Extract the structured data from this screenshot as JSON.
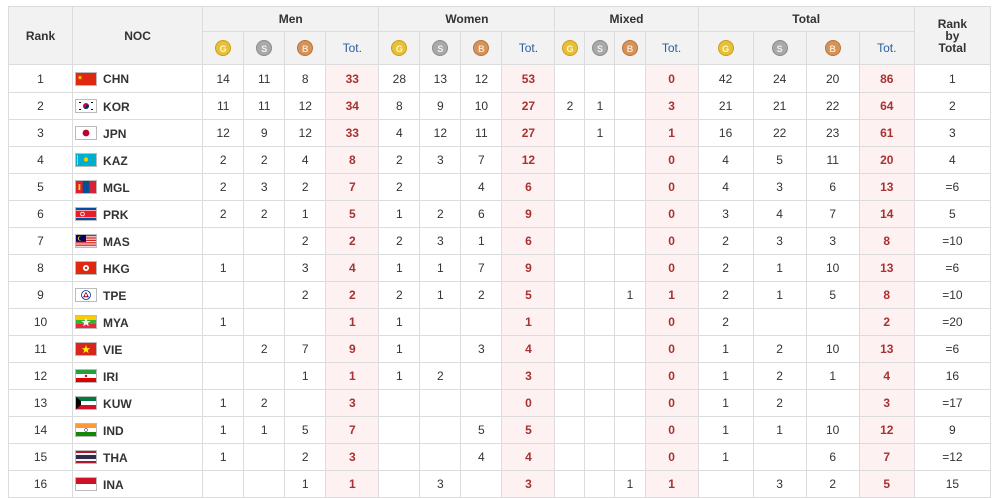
{
  "header": {
    "rank": "Rank",
    "noc": "NOC",
    "groups": [
      "Men",
      "Women",
      "Mixed",
      "Total"
    ],
    "tot": "Tot.",
    "rank_by_total_1": "Rank",
    "rank_by_total_2": "by",
    "rank_by_total_3": "Total",
    "medal_letters": {
      "gold": "G",
      "silver": "S",
      "bronze": "B"
    }
  },
  "colors": {
    "gold": "#e8c038",
    "silver": "#a9a9a9",
    "bronze": "#d5935a",
    "tot_bg": "#fdf1f1",
    "tot_text": "#a83232"
  },
  "rows": [
    {
      "rank": "1",
      "code": "CHN",
      "flag": "china-flag",
      "men": [
        "14",
        "11",
        "8",
        "33"
      ],
      "women": [
        "28",
        "13",
        "12",
        "53"
      ],
      "mixed": [
        "",
        "",
        "",
        "0"
      ],
      "total": [
        "42",
        "24",
        "20",
        "86"
      ],
      "rbt": "1"
    },
    {
      "rank": "2",
      "code": "KOR",
      "flag": "korea-flag",
      "men": [
        "11",
        "11",
        "12",
        "34"
      ],
      "women": [
        "8",
        "9",
        "10",
        "27"
      ],
      "mixed": [
        "2",
        "1",
        "",
        "3"
      ],
      "total": [
        "21",
        "21",
        "22",
        "64"
      ],
      "rbt": "2"
    },
    {
      "rank": "3",
      "code": "JPN",
      "flag": "japan-flag",
      "men": [
        "12",
        "9",
        "12",
        "33"
      ],
      "women": [
        "4",
        "12",
        "11",
        "27"
      ],
      "mixed": [
        "",
        "1",
        "",
        "1"
      ],
      "total": [
        "16",
        "22",
        "23",
        "61"
      ],
      "rbt": "3"
    },
    {
      "rank": "4",
      "code": "KAZ",
      "flag": "kazakhstan-flag",
      "men": [
        "2",
        "2",
        "4",
        "8"
      ],
      "women": [
        "2",
        "3",
        "7",
        "12"
      ],
      "mixed": [
        "",
        "",
        "",
        "0"
      ],
      "total": [
        "4",
        "5",
        "11",
        "20"
      ],
      "rbt": "4"
    },
    {
      "rank": "5",
      "code": "MGL",
      "flag": "mongolia-flag",
      "men": [
        "2",
        "3",
        "2",
        "7"
      ],
      "women": [
        "2",
        "",
        "4",
        "6"
      ],
      "mixed": [
        "",
        "",
        "",
        "0"
      ],
      "total": [
        "4",
        "3",
        "6",
        "13"
      ],
      "rbt": "=6"
    },
    {
      "rank": "6",
      "code": "PRK",
      "flag": "north-korea-flag",
      "men": [
        "2",
        "2",
        "1",
        "5"
      ],
      "women": [
        "1",
        "2",
        "6",
        "9"
      ],
      "mixed": [
        "",
        "",
        "",
        "0"
      ],
      "total": [
        "3",
        "4",
        "7",
        "14"
      ],
      "rbt": "5"
    },
    {
      "rank": "7",
      "code": "MAS",
      "flag": "malaysia-flag",
      "men": [
        "",
        "",
        "2",
        "2"
      ],
      "women": [
        "2",
        "3",
        "1",
        "6"
      ],
      "mixed": [
        "",
        "",
        "",
        "0"
      ],
      "total": [
        "2",
        "3",
        "3",
        "8"
      ],
      "rbt": "=10"
    },
    {
      "rank": "8",
      "code": "HKG",
      "flag": "hong-kong-flag",
      "men": [
        "1",
        "",
        "3",
        "4"
      ],
      "women": [
        "1",
        "1",
        "7",
        "9"
      ],
      "mixed": [
        "",
        "",
        "",
        "0"
      ],
      "total": [
        "2",
        "1",
        "10",
        "13"
      ],
      "rbt": "=6"
    },
    {
      "rank": "9",
      "code": "TPE",
      "flag": "chinese-taipei-flag",
      "men": [
        "",
        "",
        "2",
        "2"
      ],
      "women": [
        "2",
        "1",
        "2",
        "5"
      ],
      "mixed": [
        "",
        "",
        "1",
        "1"
      ],
      "total": [
        "2",
        "1",
        "5",
        "8"
      ],
      "rbt": "=10"
    },
    {
      "rank": "10",
      "code": "MYA",
      "flag": "myanmar-flag",
      "men": [
        "1",
        "",
        "",
        "1"
      ],
      "women": [
        "1",
        "",
        "",
        "1"
      ],
      "mixed": [
        "",
        "",
        "",
        "0"
      ],
      "total": [
        "2",
        "",
        "",
        "2"
      ],
      "rbt": "=20"
    },
    {
      "rank": "11",
      "code": "VIE",
      "flag": "vietnam-flag",
      "men": [
        "",
        "2",
        "7",
        "9"
      ],
      "women": [
        "1",
        "",
        "3",
        "4"
      ],
      "mixed": [
        "",
        "",
        "",
        "0"
      ],
      "total": [
        "1",
        "2",
        "10",
        "13"
      ],
      "rbt": "=6"
    },
    {
      "rank": "12",
      "code": "IRI",
      "flag": "iran-flag",
      "men": [
        "",
        "",
        "1",
        "1"
      ],
      "women": [
        "1",
        "2",
        "",
        "3"
      ],
      "mixed": [
        "",
        "",
        "",
        "0"
      ],
      "total": [
        "1",
        "2",
        "1",
        "4"
      ],
      "rbt": "16"
    },
    {
      "rank": "13",
      "code": "KUW",
      "flag": "kuwait-flag",
      "men": [
        "1",
        "2",
        "",
        "3"
      ],
      "women": [
        "",
        "",
        "",
        "0"
      ],
      "mixed": [
        "",
        "",
        "",
        "0"
      ],
      "total": [
        "1",
        "2",
        "",
        "3"
      ],
      "rbt": "=17"
    },
    {
      "rank": "14",
      "code": "IND",
      "flag": "india-flag",
      "men": [
        "1",
        "1",
        "5",
        "7"
      ],
      "women": [
        "",
        "",
        "5",
        "5"
      ],
      "mixed": [
        "",
        "",
        "",
        "0"
      ],
      "total": [
        "1",
        "1",
        "10",
        "12"
      ],
      "rbt": "9"
    },
    {
      "rank": "15",
      "code": "THA",
      "flag": "thailand-flag",
      "men": [
        "1",
        "",
        "2",
        "3"
      ],
      "women": [
        "",
        "",
        "4",
        "4"
      ],
      "mixed": [
        "",
        "",
        "",
        "0"
      ],
      "total": [
        "1",
        "",
        "6",
        "7"
      ],
      "rbt": "=12"
    },
    {
      "rank": "16",
      "code": "INA",
      "flag": "indonesia-flag",
      "men": [
        "",
        "",
        "1",
        "1"
      ],
      "women": [
        "",
        "3",
        "",
        "3"
      ],
      "mixed": [
        "",
        "",
        "1",
        "1"
      ],
      "total": [
        "",
        "3",
        "2",
        "5"
      ],
      "rbt": "15"
    }
  ]
}
